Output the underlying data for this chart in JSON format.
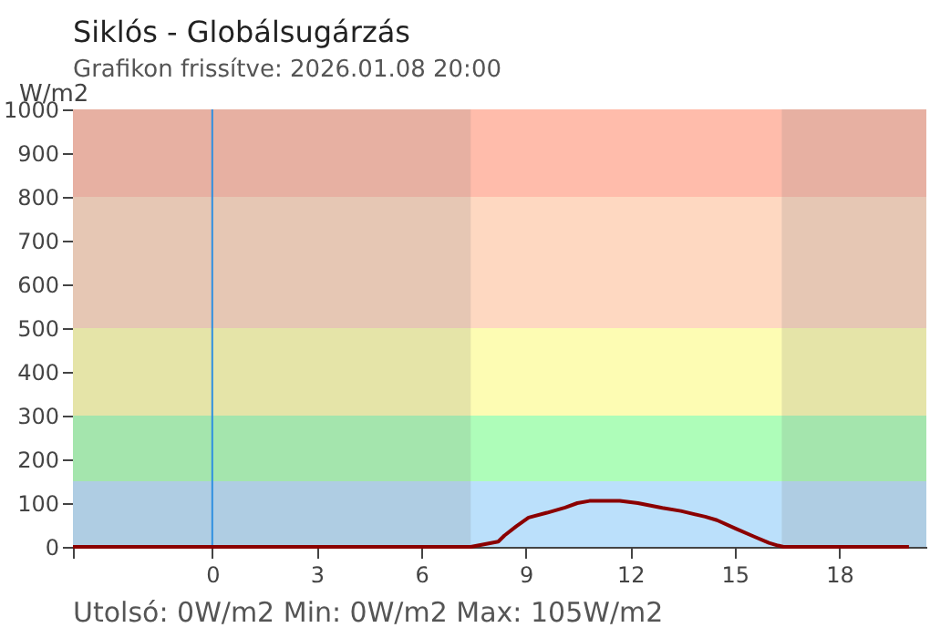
{
  "chart_data": {
    "type": "line",
    "title": "Siklós - Globálsugárzás",
    "subtitle": "Grafikon frissítve: 2026.01.08 20:00",
    "ylabel": "W/m2",
    "x": [
      -4,
      0,
      4,
      7.42,
      8.21,
      8.39,
      8.73,
      9.08,
      9.61,
      10.13,
      10.48,
      10.83,
      11.7,
      12.22,
      12.92,
      13.45,
      14.15,
      14.49,
      15.02,
      15.54,
      15.98,
      16.24,
      16.4,
      18,
      20
    ],
    "series": [
      {
        "color": "#8b0000",
        "values": [
          0,
          0,
          0,
          0,
          12,
          26,
          47,
          67,
          78,
          90,
          100,
          105,
          105,
          100,
          89,
          82,
          69,
          61,
          42,
          24,
          9,
          3,
          0,
          0,
          0
        ]
      }
    ],
    "xlim": [
      -4,
      20.5
    ],
    "xticks": [
      {
        "value": -4,
        "label": null
      },
      0,
      3,
      6,
      9,
      12,
      15,
      18
    ],
    "ylim": [
      0,
      1000
    ],
    "yticks": [
      0,
      100,
      200,
      300,
      400,
      500,
      600,
      700,
      800,
      900,
      1000
    ],
    "grid": false,
    "bands": [
      {
        "axis": "y",
        "from": 0,
        "to": 150,
        "color": "#bbe0fb"
      },
      {
        "axis": "y",
        "from": 150,
        "to": 300,
        "color": "#aefdb9"
      },
      {
        "axis": "y",
        "from": 300,
        "to": 500,
        "color": "#fdfcb3"
      },
      {
        "axis": "y",
        "from": 500,
        "to": 800,
        "color": "#fed8c1"
      },
      {
        "axis": "y",
        "from": 800,
        "to": 1000,
        "color": "#ffbcab"
      },
      {
        "axis": "x",
        "from": -4,
        "to": 7.42,
        "color": "#7a7a7a"
      },
      {
        "axis": "x",
        "from": 16.35,
        "to": 20.5,
        "color": "#7a7a7a"
      }
    ],
    "ref_lines": [
      {
        "axis": "x",
        "value": 0,
        "color": "#2f8fe0"
      }
    ],
    "annotations": [
      "Utolsó: 0W/m2  Min: 0W/m2  Max: 105W/m2"
    ]
  }
}
